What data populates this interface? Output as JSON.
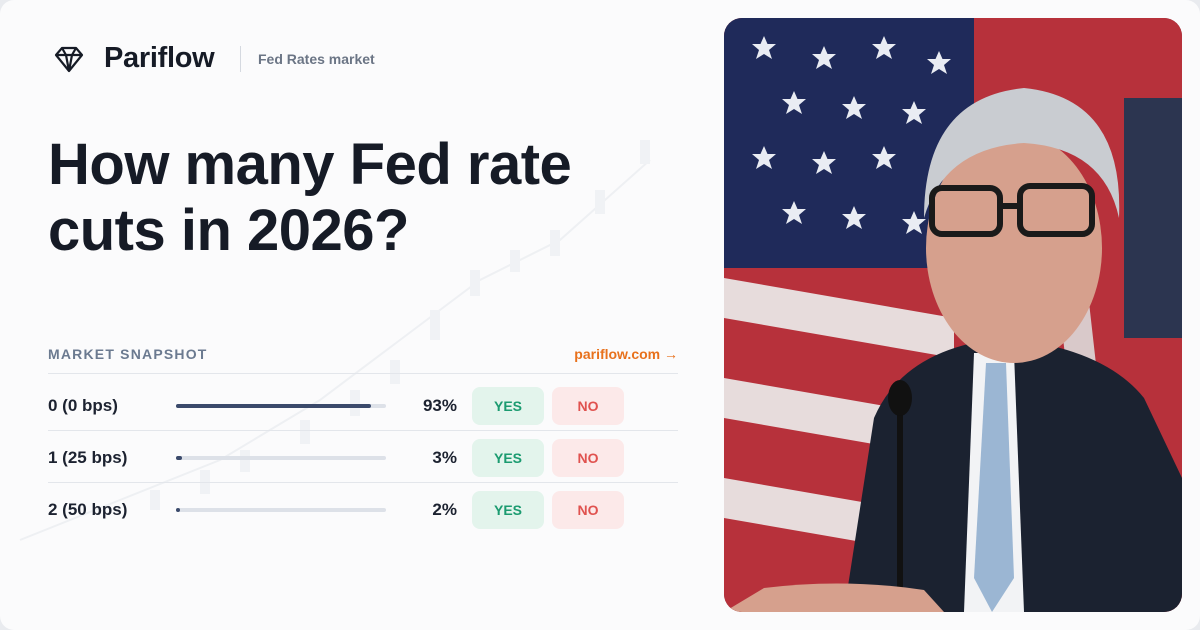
{
  "header": {
    "brand": "Pariflow",
    "subtitle": "Fed Rates market"
  },
  "title": "How many Fed rate cuts in 2026?",
  "snapshot": {
    "label": "MARKET SNAPSHOT",
    "link": "pariflow.com →",
    "rows": [
      {
        "label": "0 (0 bps)",
        "value": 93,
        "value_label": "93%",
        "yes": "YES",
        "no": "NO"
      },
      {
        "label": "1 (25 bps)",
        "value": 3,
        "value_label": "3%",
        "yes": "YES",
        "no": "NO"
      },
      {
        "label": "2 (50 bps)",
        "value": 2,
        "value_label": "2%",
        "yes": "YES",
        "no": "NO"
      }
    ]
  }
}
